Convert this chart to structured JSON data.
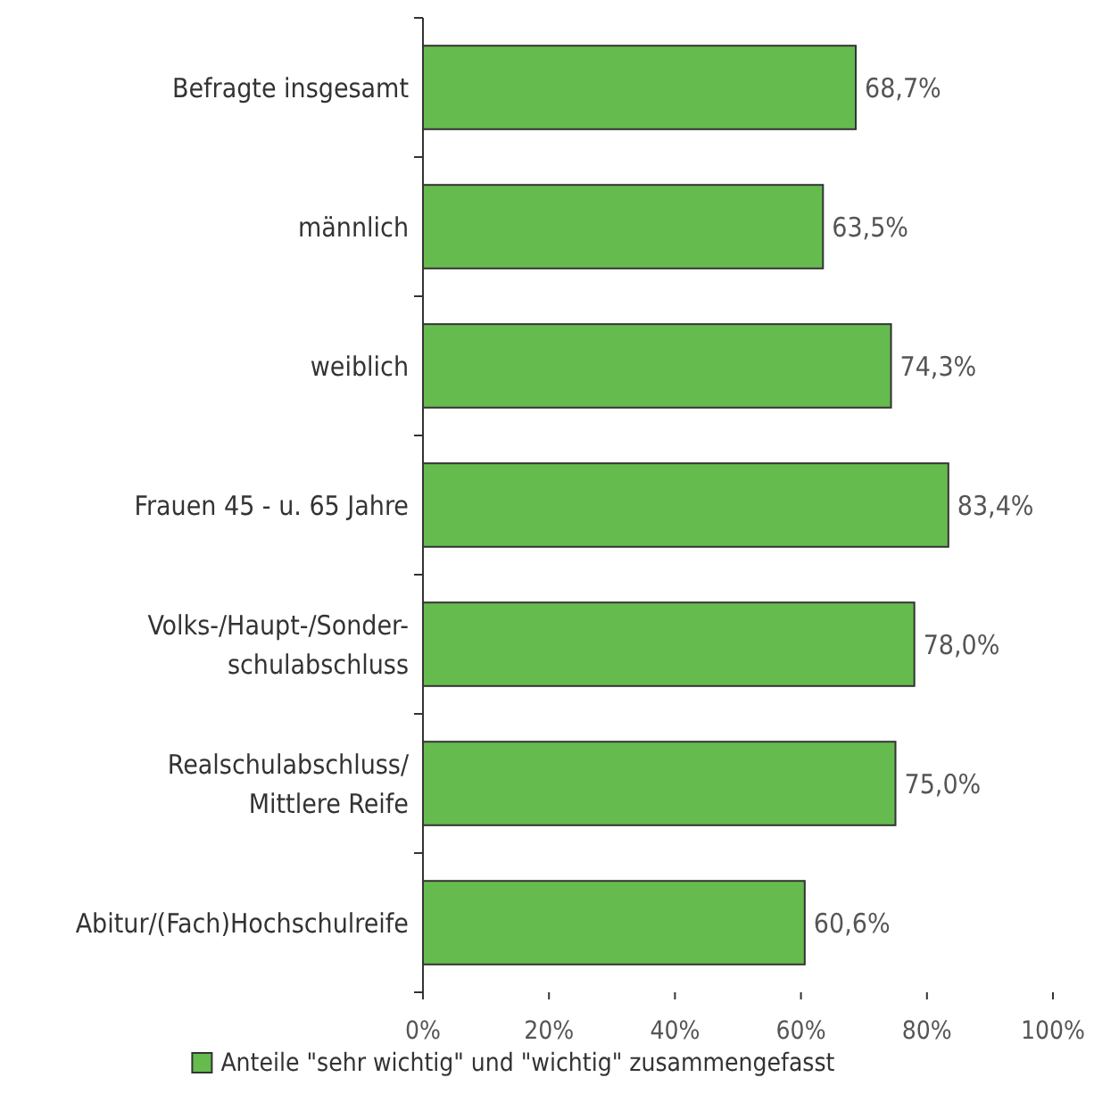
{
  "chart_data": {
    "type": "bar",
    "orientation": "horizontal",
    "categories": [
      "Befragte insgesamt",
      "männlich",
      "weiblich",
      "Frauen 45 - u. 65 Jahre",
      "Volks-/Haupt-/Sonder-\nschulabschluss",
      "Realschulabschluss/\nMittlere Reife",
      "Abitur/(Fach)Hochschulreife"
    ],
    "series": [
      {
        "name": "Anteile \"sehr wichtig\" und \"wichtig\" zusammengefasst",
        "color": "#66bb4f",
        "values": [
          68.7,
          63.5,
          74.3,
          83.4,
          78.0,
          75.0,
          60.6
        ],
        "value_labels": [
          "68,7%",
          "63,5%",
          "74,3%",
          "83,4%",
          "78,0%",
          "75,0%",
          "60,6%"
        ]
      }
    ],
    "xlim": [
      0,
      100
    ],
    "xticks": [
      {
        "value": 0,
        "label": "0%"
      },
      {
        "value": 20,
        "label": "20%"
      },
      {
        "value": 40,
        "label": "40%"
      },
      {
        "value": 60,
        "label": "60%"
      },
      {
        "value": 80,
        "label": "80%"
      },
      {
        "value": 100,
        "label": "100%"
      }
    ],
    "grid": false,
    "legend": "bottom"
  }
}
